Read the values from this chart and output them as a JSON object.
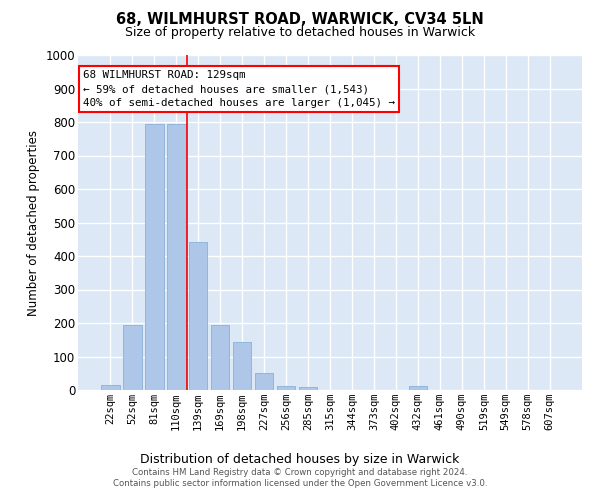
{
  "title": "68, WILMHURST ROAD, WARWICK, CV34 5LN",
  "subtitle": "Size of property relative to detached houses in Warwick",
  "xlabel": "Distribution of detached houses by size in Warwick",
  "ylabel": "Number of detached properties",
  "bar_color": "#aec6e8",
  "bar_edge_color": "#8ab0d8",
  "axes_bg": "#dce8f5",
  "fig_bg": "#ffffff",
  "grid_color": "#ffffff",
  "categories": [
    "22sqm",
    "52sqm",
    "81sqm",
    "110sqm",
    "139sqm",
    "169sqm",
    "198sqm",
    "227sqm",
    "256sqm",
    "285sqm",
    "315sqm",
    "344sqm",
    "373sqm",
    "402sqm",
    "432sqm",
    "461sqm",
    "490sqm",
    "519sqm",
    "549sqm",
    "578sqm",
    "607sqm"
  ],
  "values": [
    15,
    193,
    793,
    793,
    443,
    193,
    143,
    50,
    13,
    10,
    0,
    0,
    0,
    0,
    13,
    0,
    0,
    0,
    0,
    0,
    0
  ],
  "ylim": [
    0,
    1000
  ],
  "yticks": [
    0,
    100,
    200,
    300,
    400,
    500,
    600,
    700,
    800,
    900,
    1000
  ],
  "red_line_x": 3.5,
  "annotation_title": "68 WILMHURST ROAD: 129sqm",
  "annotation_line2": "← 59% of detached houses are smaller (1,543)",
  "annotation_line3": "40% of semi-detached houses are larger (1,045) →",
  "footer_line1": "Contains HM Land Registry data © Crown copyright and database right 2024.",
  "footer_line2": "Contains public sector information licensed under the Open Government Licence v3.0."
}
